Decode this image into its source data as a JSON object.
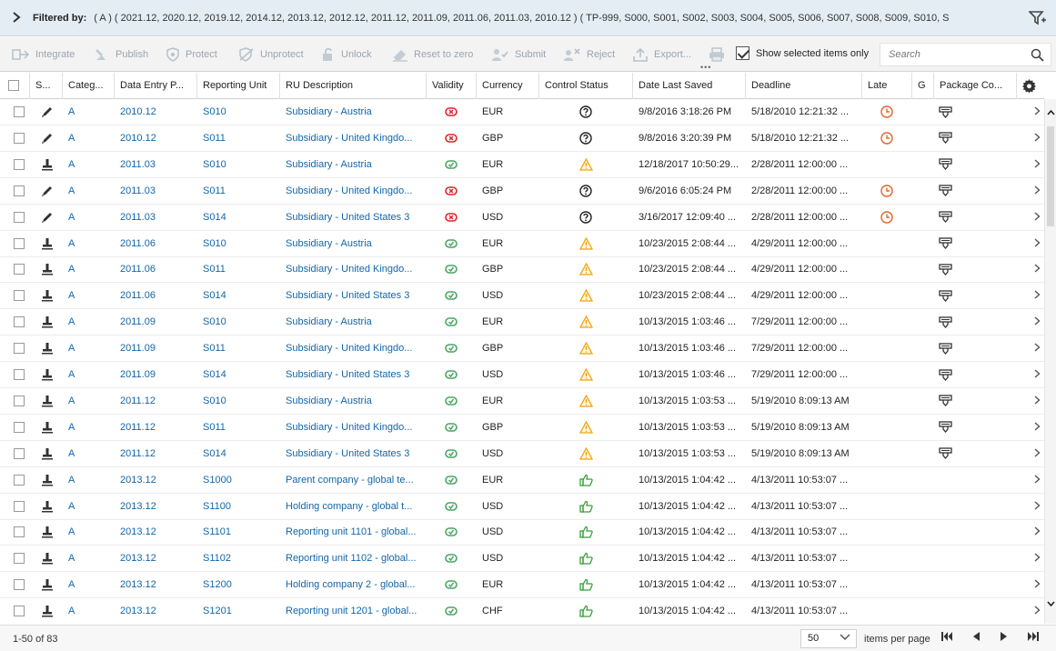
{
  "filter": {
    "label": "Filtered by:",
    "text": "( A ) ( 2021.12, 2020.12, 2019.12, 2014.12, 2013.12, 2012.12, 2011.12, 2011.09, 2011.06, 2011.03, 2010.12 ) ( TP-999, S000, S001, S002, S003, S004, S005, S006, S007, S008, S009, S010, S"
  },
  "toolbar": {
    "integrate": "Integrate",
    "publish": "Publish",
    "protect": "Protect",
    "unprotect": "Unprotect",
    "unlock": "Unlock",
    "reset": "Reset to zero",
    "submit": "Submit",
    "reject": "Reject",
    "export": "Export...",
    "show_selected": "Show selected items only",
    "search_placeholder": "Search"
  },
  "columns": {
    "s": "S...",
    "category": "Categ...",
    "data_entry_period": "Data Entry P...",
    "reporting_unit": "Reporting Unit",
    "ru_description": "RU Description",
    "validity": "Validity",
    "currency": "Currency",
    "control_status": "Control Status",
    "date_last_saved": "Date Last Saved",
    "deadline": "Deadline",
    "late": "Late",
    "g": "G",
    "package_co": "Package Co..."
  },
  "rows": [
    {
      "status": "pencil",
      "cat": "A",
      "period": "2010.12",
      "ru": "S010",
      "desc": "Subsidiary - Austria",
      "validity": "invalid",
      "cur": "EUR",
      "control": "question",
      "saved": "9/8/2016 3:18:26 PM",
      "deadline": "5/18/2010 12:21:32 ...",
      "late": true,
      "pkg": true
    },
    {
      "status": "pencil",
      "cat": "A",
      "period": "2010.12",
      "ru": "S011",
      "desc": "Subsidiary - United Kingdo...",
      "validity": "invalid",
      "cur": "GBP",
      "control": "question",
      "saved": "9/8/2016 3:20:39 PM",
      "deadline": "5/18/2010 12:21:32 ...",
      "late": true,
      "pkg": true
    },
    {
      "status": "stamp",
      "cat": "A",
      "period": "2011.03",
      "ru": "S010",
      "desc": "Subsidiary - Austria",
      "validity": "valid",
      "cur": "EUR",
      "control": "warning",
      "saved": "12/18/2017 10:50:29...",
      "deadline": "2/28/2011 12:00:00 ...",
      "late": false,
      "pkg": true
    },
    {
      "status": "pencil",
      "cat": "A",
      "period": "2011.03",
      "ru": "S011",
      "desc": "Subsidiary - United Kingdo...",
      "validity": "invalid",
      "cur": "GBP",
      "control": "question",
      "saved": "9/6/2016 6:05:24 PM",
      "deadline": "2/28/2011 12:00:00 ...",
      "late": true,
      "pkg": true
    },
    {
      "status": "pencil",
      "cat": "A",
      "period": "2011.03",
      "ru": "S014",
      "desc": "Subsidiary - United States 3",
      "validity": "invalid",
      "cur": "USD",
      "control": "question",
      "saved": "3/16/2017 12:09:40 ...",
      "deadline": "2/28/2011 12:00:00 ...",
      "late": true,
      "pkg": true
    },
    {
      "status": "stamp",
      "cat": "A",
      "period": "2011.06",
      "ru": "S010",
      "desc": "Subsidiary - Austria",
      "validity": "valid",
      "cur": "EUR",
      "control": "warning",
      "saved": "10/23/2015 2:08:44 ...",
      "deadline": "4/29/2011 12:00:00 ...",
      "late": false,
      "pkg": true
    },
    {
      "status": "stamp",
      "cat": "A",
      "period": "2011.06",
      "ru": "S011",
      "desc": "Subsidiary - United Kingdo...",
      "validity": "valid",
      "cur": "GBP",
      "control": "warning",
      "saved": "10/23/2015 2:08:44 ...",
      "deadline": "4/29/2011 12:00:00 ...",
      "late": false,
      "pkg": true
    },
    {
      "status": "stamp",
      "cat": "A",
      "period": "2011.06",
      "ru": "S014",
      "desc": "Subsidiary - United States 3",
      "validity": "valid",
      "cur": "USD",
      "control": "warning",
      "saved": "10/23/2015 2:08:44 ...",
      "deadline": "4/29/2011 12:00:00 ...",
      "late": false,
      "pkg": true
    },
    {
      "status": "stamp",
      "cat": "A",
      "period": "2011.09",
      "ru": "S010",
      "desc": "Subsidiary - Austria",
      "validity": "valid",
      "cur": "EUR",
      "control": "warning",
      "saved": "10/13/2015 1:03:46 ...",
      "deadline": "7/29/2011 12:00:00 ...",
      "late": false,
      "pkg": true
    },
    {
      "status": "stamp",
      "cat": "A",
      "period": "2011.09",
      "ru": "S011",
      "desc": "Subsidiary - United Kingdo...",
      "validity": "valid",
      "cur": "GBP",
      "control": "warning",
      "saved": "10/13/2015 1:03:46 ...",
      "deadline": "7/29/2011 12:00:00 ...",
      "late": false,
      "pkg": true
    },
    {
      "status": "stamp",
      "cat": "A",
      "period": "2011.09",
      "ru": "S014",
      "desc": "Subsidiary - United States 3",
      "validity": "valid",
      "cur": "USD",
      "control": "warning",
      "saved": "10/13/2015 1:03:46 ...",
      "deadline": "7/29/2011 12:00:00 ...",
      "late": false,
      "pkg": true
    },
    {
      "status": "stamp",
      "cat": "A",
      "period": "2011.12",
      "ru": "S010",
      "desc": "Subsidiary - Austria",
      "validity": "valid",
      "cur": "EUR",
      "control": "warning",
      "saved": "10/13/2015 1:03:53 ...",
      "deadline": "5/19/2010 8:09:13 AM",
      "late": false,
      "pkg": true
    },
    {
      "status": "stamp",
      "cat": "A",
      "period": "2011.12",
      "ru": "S011",
      "desc": "Subsidiary - United Kingdo...",
      "validity": "valid",
      "cur": "GBP",
      "control": "warning",
      "saved": "10/13/2015 1:03:53 ...",
      "deadline": "5/19/2010 8:09:13 AM",
      "late": false,
      "pkg": true
    },
    {
      "status": "stamp",
      "cat": "A",
      "period": "2011.12",
      "ru": "S014",
      "desc": "Subsidiary - United States 3",
      "validity": "valid",
      "cur": "USD",
      "control": "warning",
      "saved": "10/13/2015 1:03:53 ...",
      "deadline": "5/19/2010 8:09:13 AM",
      "late": false,
      "pkg": true
    },
    {
      "status": "stamp",
      "cat": "A",
      "period": "2013.12",
      "ru": "S1000",
      "desc": "Parent company - global te...",
      "validity": "valid",
      "cur": "EUR",
      "control": "thumb",
      "saved": "10/13/2015 1:04:42 ...",
      "deadline": "4/13/2011 10:53:07 ...",
      "late": false,
      "pkg": false
    },
    {
      "status": "stamp",
      "cat": "A",
      "period": "2013.12",
      "ru": "S1100",
      "desc": "Holding company - global t...",
      "validity": "valid",
      "cur": "USD",
      "control": "thumb",
      "saved": "10/13/2015 1:04:42 ...",
      "deadline": "4/13/2011 10:53:07 ...",
      "late": false,
      "pkg": false
    },
    {
      "status": "stamp",
      "cat": "A",
      "period": "2013.12",
      "ru": "S1101",
      "desc": "Reporting unit 1101 - global...",
      "validity": "valid",
      "cur": "USD",
      "control": "thumb",
      "saved": "10/13/2015 1:04:42 ...",
      "deadline": "4/13/2011 10:53:07 ...",
      "late": false,
      "pkg": false
    },
    {
      "status": "stamp",
      "cat": "A",
      "period": "2013.12",
      "ru": "S1102",
      "desc": "Reporting unit 1102 - global...",
      "validity": "valid",
      "cur": "USD",
      "control": "thumb",
      "saved": "10/13/2015 1:04:42 ...",
      "deadline": "4/13/2011 10:53:07 ...",
      "late": false,
      "pkg": false
    },
    {
      "status": "stamp",
      "cat": "A",
      "period": "2013.12",
      "ru": "S1200",
      "desc": "Holding company 2 - global...",
      "validity": "valid",
      "cur": "EUR",
      "control": "thumb",
      "saved": "10/13/2015 1:04:42 ...",
      "deadline": "4/13/2011 10:53:07 ...",
      "late": false,
      "pkg": false
    },
    {
      "status": "stamp",
      "cat": "A",
      "period": "2013.12",
      "ru": "S1201",
      "desc": "Reporting unit 1201 - global...",
      "validity": "valid",
      "cur": "CHF",
      "control": "thumb",
      "saved": "10/13/2015 1:04:42 ...",
      "deadline": "4/13/2011 10:53:07 ...",
      "late": false,
      "pkg": false
    }
  ],
  "footer": {
    "count": "1-50 of 83",
    "per_page": "50",
    "items_per_page": "items per page"
  },
  "colors": {
    "link": "#1266a8",
    "invalid": "#d9262b",
    "valid": "#4aa564",
    "warning": "#f0a30a",
    "late": "#e0662a",
    "thumb": "#3a9d3a"
  }
}
